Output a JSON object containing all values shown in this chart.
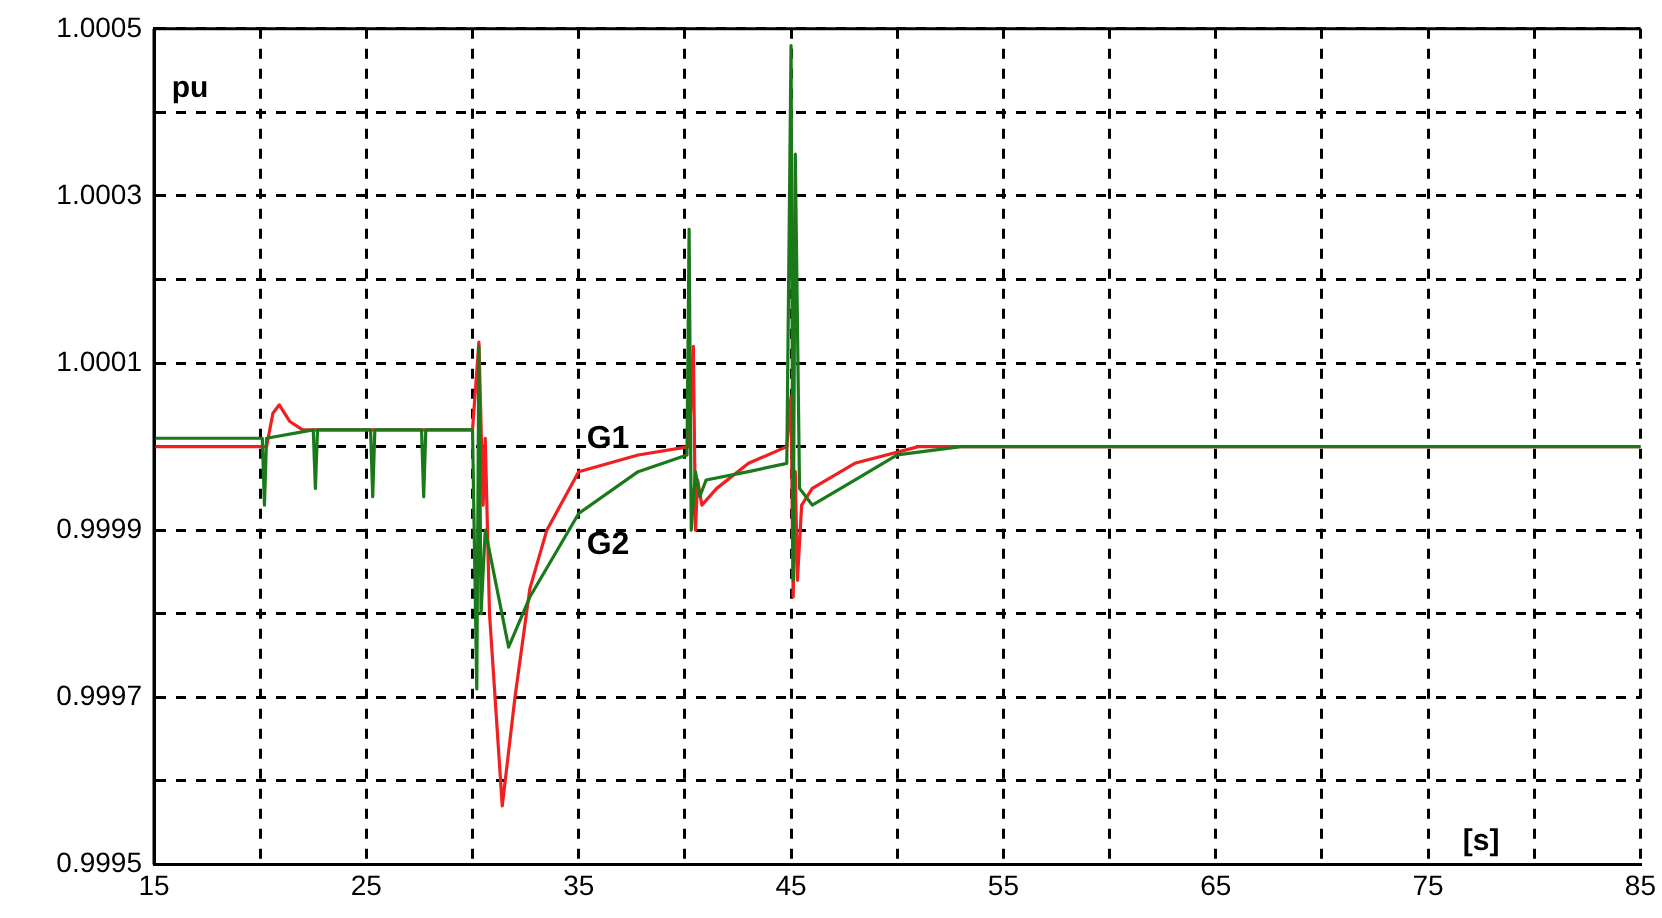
{
  "chart_data": {
    "type": "line",
    "xlabel": "[s]",
    "ylabel": "pu",
    "xlim": [
      15,
      85
    ],
    "xticks": [
      15,
      {
        "value": 20,
        "label": null
      },
      25,
      {
        "value": 30,
        "label": null
      },
      35,
      {
        "value": 40,
        "label": null
      },
      45,
      {
        "value": 50,
        "label": null
      },
      55,
      {
        "value": 60,
        "label": null
      },
      65,
      {
        "value": 70,
        "label": null
      },
      75,
      {
        "value": 80,
        "label": null
      },
      85
    ],
    "ylim": [
      0.9995,
      1.0005
    ],
    "yticks": [
      0.9995,
      {
        "value": 0.9996,
        "label": null
      },
      0.9997,
      {
        "value": 0.9998,
        "label": null
      },
      0.9999,
      {
        "value": 1.0,
        "label": null
      },
      1.0001,
      {
        "value": 1.0002,
        "label": null
      },
      1.0003,
      {
        "value": 1.0004,
        "label": null
      },
      1.0005
    ],
    "grid": true,
    "legend": false,
    "line_style": "solid",
    "marker": "none",
    "series": [
      {
        "name": "G1",
        "color": "#f02020",
        "x": [
          15,
          20.3,
          20.6,
          20.9,
          21.4,
          22,
          30,
          30.3,
          30.5,
          30.6,
          30.8,
          31.4,
          32,
          32.7,
          33.5,
          35,
          37.8,
          40.2,
          40.4,
          40.5,
          40.6,
          40.8,
          41.5,
          43,
          44.8,
          45,
          45.1,
          45.2,
          45.3,
          45.5,
          46,
          48,
          51,
          85
        ],
        "values": [
          1.0,
          1.0,
          1.00004,
          1.00005,
          1.00003,
          1.00002,
          1.00002,
          1.000125,
          0.99993,
          1.00001,
          0.9998,
          0.99957,
          0.9997,
          0.99983,
          0.9999,
          0.99997,
          0.99999,
          1.0,
          1.00012,
          0.9999,
          0.99996,
          0.99993,
          0.99995,
          0.99998,
          1.0,
          1.00006,
          0.99982,
          0.99997,
          0.99984,
          0.99993,
          0.99995,
          0.99998,
          1.0,
          1.0
        ]
      },
      {
        "name": "G2",
        "color": "#1a7a1a",
        "x": [
          15,
          20.1,
          20.2,
          20.3,
          22.5,
          22.6,
          22.7,
          25.2,
          25.3,
          25.4,
          27.6,
          27.7,
          27.8,
          30,
          30.2,
          30.3,
          30.4,
          30.6,
          31.7,
          32.7,
          35,
          37.8,
          40.1,
          40.2,
          40.3,
          40.5,
          40.7,
          41,
          43,
          44.8,
          45,
          45.1,
          45.2,
          45.4,
          46,
          48,
          50,
          53,
          85
        ],
        "values": [
          1.00001,
          1.00001,
          0.99993,
          1.00001,
          1.00002,
          0.99995,
          1.00002,
          1.00002,
          0.99994,
          1.00002,
          1.00002,
          0.99994,
          1.00002,
          1.00002,
          0.99971,
          1.00012,
          0.9998,
          0.9999,
          0.99976,
          0.99982,
          0.99992,
          0.99997,
          0.99999,
          1.00026,
          0.9999,
          0.99997,
          0.99994,
          0.99996,
          0.99997,
          0.99998,
          1.00048,
          0.99984,
          1.00035,
          0.99995,
          0.99993,
          0.99996,
          0.99999,
          1.0,
          1.0
        ]
      }
    ]
  }
}
